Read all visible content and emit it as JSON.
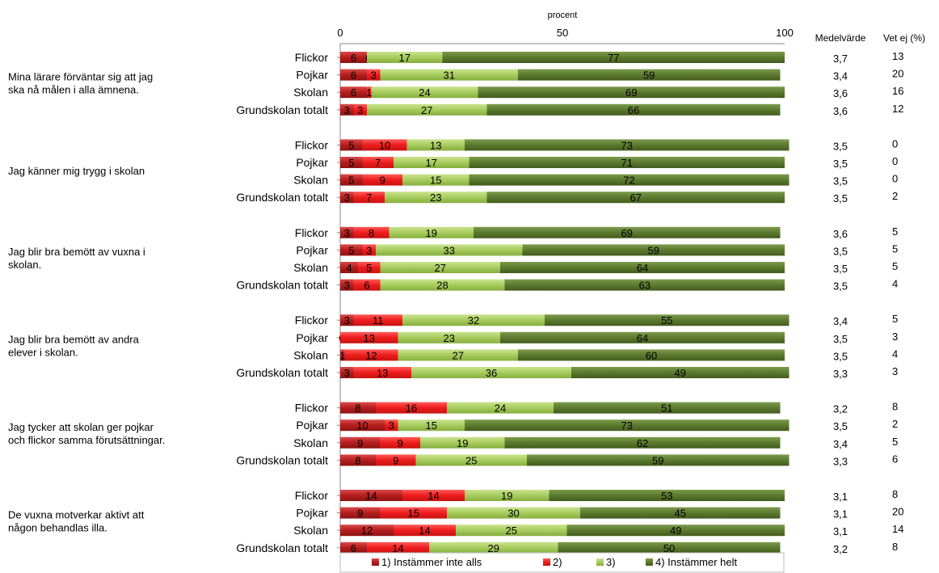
{
  "chart_data": {
    "type": "bar",
    "stacked": true,
    "orientation": "horizontal",
    "xlabel": "procent",
    "xlim": [
      0,
      100
    ],
    "xticks": [
      "0",
      "50",
      "100"
    ],
    "extra_columns": [
      "Medelvärde",
      "Vet ej (%)"
    ],
    "legend_position": "bottom",
    "colors": [
      "#b51d1d",
      "#ee1c1c",
      "#a8cc5e",
      "#5c7a2e"
    ],
    "series": [
      {
        "name": "1) Instämmer inte alls"
      },
      {
        "name": "2)"
      },
      {
        "name": "3)"
      },
      {
        "name": "4) Instämmer helt"
      }
    ],
    "questions": [
      {
        "question": "Mina lärare förväntar  sig att jag ska nå målen i alla ämnena.",
        "rows": [
          {
            "group": "Flickor",
            "values": [
              6,
              0,
              17,
              77
            ],
            "mean": "3,7",
            "vet_ej": "13"
          },
          {
            "group": "Pojkar",
            "values": [
              6,
              3,
              31,
              59
            ],
            "mean": "3,4",
            "vet_ej": "20"
          },
          {
            "group": "Skolan",
            "values": [
              6,
              1,
              24,
              69
            ],
            "mean": "3,6",
            "vet_ej": "16"
          },
          {
            "group": "Grundskolan totalt",
            "values": [
              3,
              3,
              27,
              66
            ],
            "mean": "3,6",
            "vet_ej": "12"
          }
        ]
      },
      {
        "question": "Jag känner mig trygg i skolan",
        "rows": [
          {
            "group": "Flickor",
            "values": [
              5,
              10,
              13,
              73
            ],
            "mean": "3,5",
            "vet_ej": "0"
          },
          {
            "group": "Pojkar",
            "values": [
              5,
              7,
              17,
              71
            ],
            "mean": "3,5",
            "vet_ej": "0"
          },
          {
            "group": "Skolan",
            "values": [
              5,
              9,
              15,
              72
            ],
            "mean": "3,5",
            "vet_ej": "0"
          },
          {
            "group": "Grundskolan totalt",
            "values": [
              3,
              7,
              23,
              67
            ],
            "mean": "3,5",
            "vet_ej": "2"
          }
        ]
      },
      {
        "question": "Jag blir bra bemött av vuxna i skolan.",
        "rows": [
          {
            "group": "Flickor",
            "values": [
              3,
              8,
              19,
              69
            ],
            "mean": "3,6",
            "vet_ej": "5"
          },
          {
            "group": "Pojkar",
            "values": [
              5,
              3,
              33,
              59
            ],
            "mean": "3,5",
            "vet_ej": "5"
          },
          {
            "group": "Skolan",
            "values": [
              4,
              5,
              27,
              64
            ],
            "mean": "3,5",
            "vet_ej": "5"
          },
          {
            "group": "Grundskolan totalt",
            "values": [
              3,
              6,
              28,
              63
            ],
            "mean": "3,5",
            "vet_ej": "4"
          }
        ]
      },
      {
        "question": "Jag blir bra bemött av andra elever  i skolan.",
        "rows": [
          {
            "group": "Flickor",
            "values": [
              3,
              11,
              32,
              55
            ],
            "mean": "3,4",
            "vet_ej": "5"
          },
          {
            "group": "Pojkar",
            "values": [
              0,
              13,
              23,
              64
            ],
            "mean": "3,5",
            "vet_ej": "3"
          },
          {
            "group": "Skolan",
            "values": [
              1,
              12,
              27,
              60
            ],
            "mean": "3,5",
            "vet_ej": "4"
          },
          {
            "group": "Grundskolan totalt",
            "values": [
              3,
              13,
              36,
              49
            ],
            "mean": "3,3",
            "vet_ej": "3"
          }
        ]
      },
      {
        "question": "Jag tycker att skolan ger pojkar och flickor samma förutsättningar.",
        "rows": [
          {
            "group": "Flickor",
            "values": [
              8,
              16,
              24,
              51
            ],
            "mean": "3,2",
            "vet_ej": "8"
          },
          {
            "group": "Pojkar",
            "values": [
              10,
              3,
              15,
              73
            ],
            "mean": "3,5",
            "vet_ej": "2"
          },
          {
            "group": "Skolan",
            "values": [
              9,
              9,
              19,
              62
            ],
            "mean": "3,4",
            "vet_ej": "5"
          },
          {
            "group": "Grundskolan totalt",
            "values": [
              8,
              9,
              25,
              59
            ],
            "mean": "3,3",
            "vet_ej": "6"
          }
        ]
      },
      {
        "question": "De vuxna motverkar aktivt att någon behandlas illa.",
        "rows": [
          {
            "group": "Flickor",
            "values": [
              14,
              14,
              19,
              53
            ],
            "mean": "3,1",
            "vet_ej": "8"
          },
          {
            "group": "Pojkar",
            "values": [
              9,
              15,
              30,
              45
            ],
            "mean": "3,1",
            "vet_ej": "20"
          },
          {
            "group": "Skolan",
            "values": [
              12,
              14,
              25,
              49
            ],
            "mean": "3,1",
            "vet_ej": "14"
          },
          {
            "group": "Grundskolan totalt",
            "values": [
              6,
              14,
              29,
              50
            ],
            "mean": "3,2",
            "vet_ej": "8"
          }
        ]
      }
    ]
  }
}
